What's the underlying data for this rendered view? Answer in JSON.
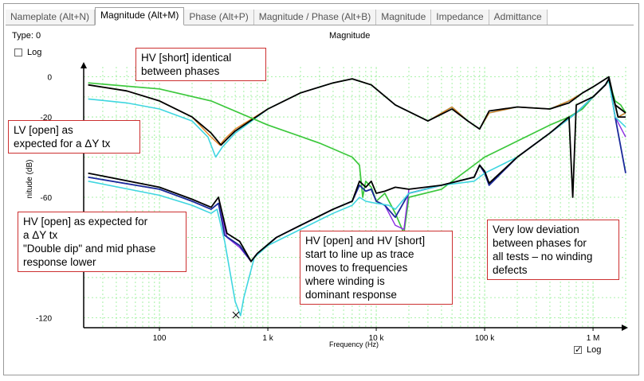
{
  "tabs": [
    {
      "label": "Nameplate (Alt+N)",
      "active": false
    },
    {
      "label": "Magnitude (Alt+M)",
      "active": true
    },
    {
      "label": "Phase (Alt+P)",
      "active": false
    },
    {
      "label": "Magnitude / Phase (Alt+B)",
      "active": false
    },
    {
      "label": "Magnitude",
      "active": false
    },
    {
      "label": "Impedance",
      "active": false
    },
    {
      "label": "Admittance",
      "active": false
    }
  ],
  "type_label": "Type: 0",
  "y_log_label": "Log",
  "x_log_label": "Log",
  "annotations": {
    "hv_short": [
      "HV [short] identical",
      "between phases"
    ],
    "lv_open": [
      "LV [open] as",
      "expected for a ΔY tx"
    ],
    "hv_open": [
      "HV [open] as expected for",
      "a ΔY tx",
      "\"Double dip\" and mid phase",
      "response lower"
    ],
    "hv_open_short": [
      "HV [open] and HV [short]",
      "start to line up as trace",
      "moves to frequencies",
      "where winding is",
      "dominant response"
    ],
    "deviation": [
      "Very low deviation",
      "between phases for",
      "all tests – no winding",
      "defects"
    ]
  },
  "colors": {
    "black": "#000000",
    "cyan": "#3fd6e0",
    "navy": "#1a2a9a",
    "green": "#3cc83c",
    "orange": "#e08020",
    "purple": "#8a2be2",
    "grid": "#90ee90",
    "annotation_border": "#cc3030"
  },
  "chart_data": {
    "type": "line",
    "title": "Magnitude",
    "xlabel": "Frequency (Hz)",
    "ylabel": "nitude (dB)",
    "x_scale": "log",
    "xlim": [
      20,
      2000000
    ],
    "ylim": [
      -125,
      5
    ],
    "x_ticks": [
      {
        "value": 100,
        "label": "100"
      },
      {
        "value": 1000,
        "label": "1 k"
      },
      {
        "value": 10000,
        "label": "10 k"
      },
      {
        "value": 100000,
        "label": "100 k"
      },
      {
        "value": 1000000,
        "label": "1 M"
      }
    ],
    "y_ticks": [
      {
        "value": 0,
        "label": "0"
      },
      {
        "value": -20,
        "label": "-20"
      },
      {
        "value": -60,
        "label": "-60"
      },
      {
        "value": -120,
        "label": "-120"
      }
    ],
    "grid": true,
    "series": [
      {
        "color": "#3fd6e0",
        "width": 1.6,
        "points": [
          [
            22,
            -11
          ],
          [
            50,
            -13
          ],
          [
            100,
            -16
          ],
          [
            200,
            -22
          ],
          [
            280,
            -30
          ],
          [
            330,
            -40
          ],
          [
            380,
            -35
          ],
          [
            500,
            -28
          ],
          [
            1000,
            -16
          ],
          [
            2000,
            -8
          ],
          [
            4000,
            -3
          ],
          [
            6000,
            -1
          ],
          [
            9000,
            -4
          ],
          [
            15000,
            -14
          ],
          [
            30000,
            -22
          ],
          [
            50000,
            -15
          ],
          [
            70000,
            -22
          ],
          [
            90000,
            -26
          ],
          [
            110000,
            -18
          ],
          [
            200000,
            -15
          ],
          [
            400000,
            -16
          ],
          [
            600000,
            -12
          ],
          [
            800000,
            -8
          ],
          [
            1000000,
            -5
          ],
          [
            1400000,
            0
          ],
          [
            1700000,
            -20
          ],
          [
            2000000,
            -18
          ]
        ]
      },
      {
        "color": "#e08020",
        "width": 1.4,
        "points": [
          [
            22,
            -4
          ],
          [
            50,
            -7
          ],
          [
            100,
            -12
          ],
          [
            200,
            -20
          ],
          [
            300,
            -30
          ],
          [
            360,
            -34
          ],
          [
            400,
            -31
          ],
          [
            500,
            -26
          ],
          [
            1000,
            -16
          ],
          [
            2000,
            -8
          ],
          [
            4000,
            -3
          ],
          [
            6000,
            -1
          ],
          [
            9000,
            -4
          ],
          [
            15000,
            -14
          ],
          [
            30000,
            -22
          ],
          [
            50000,
            -15
          ],
          [
            70000,
            -22
          ],
          [
            90000,
            -26
          ],
          [
            110000,
            -18
          ],
          [
            200000,
            -15
          ],
          [
            400000,
            -16
          ],
          [
            600000,
            -12
          ],
          [
            800000,
            -8
          ],
          [
            1000000,
            -5
          ],
          [
            1400000,
            0
          ],
          [
            1700000,
            -20
          ],
          [
            2000000,
            -18
          ]
        ]
      },
      {
        "color": "#000000",
        "width": 1.8,
        "points": [
          [
            22,
            -4
          ],
          [
            50,
            -7
          ],
          [
            100,
            -12
          ],
          [
            200,
            -20
          ],
          [
            300,
            -28
          ],
          [
            370,
            -34
          ],
          [
            420,
            -31
          ],
          [
            500,
            -27
          ],
          [
            1000,
            -16
          ],
          [
            2000,
            -8
          ],
          [
            4000,
            -3
          ],
          [
            6000,
            -1
          ],
          [
            9000,
            -4
          ],
          [
            15000,
            -14
          ],
          [
            30000,
            -22
          ],
          [
            50000,
            -16
          ],
          [
            70000,
            -22
          ],
          [
            90000,
            -26
          ],
          [
            110000,
            -17
          ],
          [
            200000,
            -15
          ],
          [
            400000,
            -16
          ],
          [
            600000,
            -13
          ],
          [
            800000,
            -8
          ],
          [
            1000000,
            -5
          ],
          [
            1400000,
            0
          ],
          [
            1700000,
            -20
          ],
          [
            2000000,
            -20
          ]
        ]
      },
      {
        "color": "#3cc83c",
        "width": 1.7,
        "points": [
          [
            22,
            -3
          ],
          [
            100,
            -6
          ],
          [
            300,
            -12
          ],
          [
            1000,
            -24
          ],
          [
            3000,
            -33
          ],
          [
            6000,
            -40
          ],
          [
            7000,
            -44
          ],
          [
            7500,
            -60
          ],
          [
            8000,
            -52
          ],
          [
            9000,
            -55
          ],
          [
            10000,
            -62
          ],
          [
            12000,
            -58
          ],
          [
            15000,
            -68
          ],
          [
            18000,
            -78
          ],
          [
            20000,
            -60
          ],
          [
            40000,
            -56
          ],
          [
            100000,
            -40
          ],
          [
            200000,
            -32
          ],
          [
            400000,
            -24
          ],
          [
            600000,
            -20
          ],
          [
            800000,
            -16
          ],
          [
            1000000,
            -10
          ],
          [
            1200000,
            -6
          ],
          [
            1400000,
            -2
          ],
          [
            1600000,
            -12
          ],
          [
            1800000,
            -14
          ],
          [
            2000000,
            -18
          ]
        ]
      },
      {
        "color": "#8a2be2",
        "width": 1.4,
        "points": [
          [
            22,
            -50
          ],
          [
            100,
            -56
          ],
          [
            200,
            -62
          ],
          [
            300,
            -66
          ],
          [
            350,
            -63
          ],
          [
            420,
            -80
          ],
          [
            550,
            -85
          ],
          [
            700,
            -92
          ],
          [
            800,
            -88
          ],
          [
            1200,
            -80
          ],
          [
            2000,
            -74
          ],
          [
            4000,
            -66
          ],
          [
            6000,
            -62
          ],
          [
            7000,
            -54
          ],
          [
            8000,
            -57
          ],
          [
            9000,
            -56
          ],
          [
            10000,
            -62
          ],
          [
            12000,
            -64
          ],
          [
            15000,
            -74
          ],
          [
            18000,
            -76
          ],
          [
            20000,
            -56
          ],
          [
            40000,
            -54
          ],
          [
            80000,
            -50
          ],
          [
            90000,
            -44
          ],
          [
            100000,
            -48
          ],
          [
            110000,
            -54
          ],
          [
            200000,
            -40
          ],
          [
            400000,
            -28
          ],
          [
            700000,
            -18
          ],
          [
            1000000,
            -10
          ],
          [
            1300000,
            -4
          ],
          [
            1400000,
            -1
          ],
          [
            1600000,
            -20
          ],
          [
            2000000,
            -30
          ]
        ]
      },
      {
        "color": "#1a2a9a",
        "width": 1.8,
        "points": [
          [
            22,
            -50
          ],
          [
            100,
            -56
          ],
          [
            200,
            -62
          ],
          [
            300,
            -66
          ],
          [
            350,
            -63
          ],
          [
            400,
            -79
          ],
          [
            550,
            -84
          ],
          [
            700,
            -92
          ],
          [
            800,
            -88
          ],
          [
            1200,
            -80
          ],
          [
            2000,
            -74
          ],
          [
            4000,
            -66
          ],
          [
            6000,
            -62
          ],
          [
            7000,
            -54
          ],
          [
            8000,
            -57
          ],
          [
            9000,
            -56
          ],
          [
            10000,
            -62
          ],
          [
            12000,
            -64
          ],
          [
            15000,
            -70
          ],
          [
            20000,
            -58
          ],
          [
            40000,
            -54
          ],
          [
            80000,
            -50
          ],
          [
            90000,
            -44
          ],
          [
            100000,
            -48
          ],
          [
            110000,
            -54
          ],
          [
            200000,
            -40
          ],
          [
            400000,
            -28
          ],
          [
            700000,
            -18
          ],
          [
            1000000,
            -10
          ],
          [
            1300000,
            -4
          ],
          [
            1400000,
            -1
          ],
          [
            1600000,
            -20
          ],
          [
            2000000,
            -48
          ]
        ]
      },
      {
        "color": "#3fd6e0",
        "width": 1.6,
        "points": [
          [
            22,
            -52
          ],
          [
            100,
            -59
          ],
          [
            200,
            -64
          ],
          [
            300,
            -68
          ],
          [
            340,
            -66
          ],
          [
            400,
            -82
          ],
          [
            500,
            -112
          ],
          [
            560,
            -119
          ],
          [
            600,
            -110
          ],
          [
            750,
            -90
          ],
          [
            1000,
            -84
          ],
          [
            2000,
            -76
          ],
          [
            4000,
            -68
          ],
          [
            6000,
            -64
          ],
          [
            7000,
            -60
          ],
          [
            8000,
            -62
          ],
          [
            10000,
            -63
          ],
          [
            13000,
            -64
          ],
          [
            15000,
            -66
          ],
          [
            20000,
            -58
          ],
          [
            40000,
            -54
          ],
          [
            80000,
            -52
          ],
          [
            100000,
            -48
          ],
          [
            200000,
            -40
          ],
          [
            400000,
            -28
          ],
          [
            700000,
            -18
          ],
          [
            1000000,
            -10
          ],
          [
            1400000,
            -2
          ],
          [
            1600000,
            -20
          ],
          [
            2000000,
            -25
          ]
        ]
      },
      {
        "color": "#000000",
        "width": 1.8,
        "points": [
          [
            22,
            -48
          ],
          [
            100,
            -55
          ],
          [
            200,
            -61
          ],
          [
            300,
            -65
          ],
          [
            350,
            -60
          ],
          [
            420,
            -78
          ],
          [
            550,
            -82
          ],
          [
            700,
            -92
          ],
          [
            800,
            -88
          ],
          [
            1200,
            -80
          ],
          [
            2000,
            -74
          ],
          [
            4000,
            -66
          ],
          [
            6000,
            -62
          ],
          [
            7000,
            -52
          ],
          [
            8000,
            -55
          ],
          [
            9000,
            -52
          ],
          [
            10000,
            -58
          ],
          [
            12000,
            -57
          ],
          [
            15000,
            -55
          ],
          [
            20000,
            -56
          ],
          [
            40000,
            -54
          ],
          [
            80000,
            -50
          ],
          [
            90000,
            -44
          ],
          [
            100000,
            -47
          ],
          [
            110000,
            -53
          ],
          [
            200000,
            -40
          ],
          [
            400000,
            -28
          ],
          [
            600000,
            -20
          ],
          [
            650000,
            -60
          ],
          [
            700000,
            -14
          ],
          [
            1000000,
            -10
          ],
          [
            1300000,
            -4
          ],
          [
            1400000,
            -1
          ],
          [
            1600000,
            -14
          ],
          [
            2000000,
            -18
          ]
        ]
      }
    ]
  }
}
